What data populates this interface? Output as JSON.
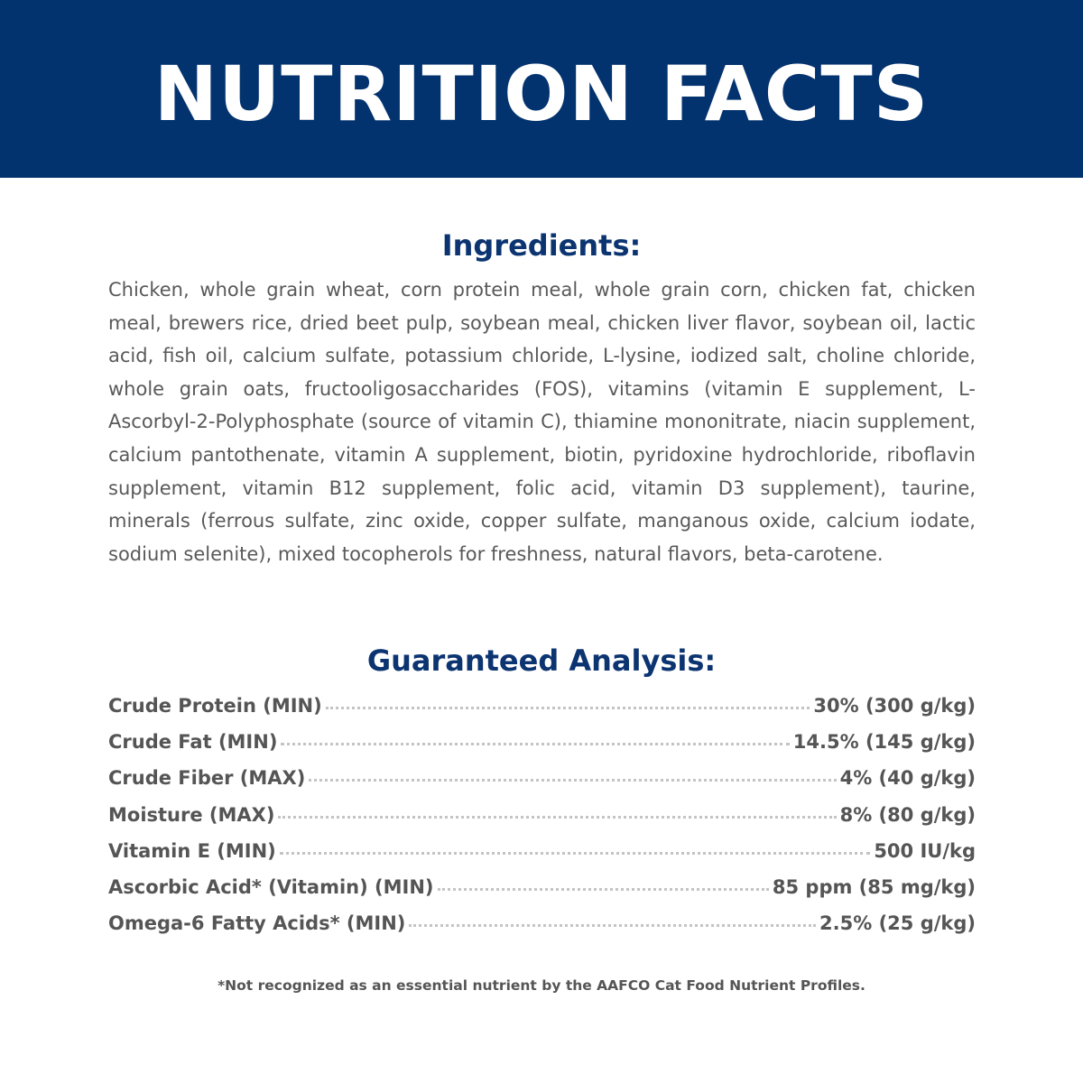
{
  "header": {
    "title": "NUTRITION FACTS",
    "background": "#03336e"
  },
  "ingredients": {
    "heading": "Ingredients:",
    "text": "Chicken, whole grain wheat, corn protein meal, whole grain corn, chicken fat, chicken meal, brewers rice, dried beet pulp, soybean meal, chicken liver flavor, soybean oil, lactic acid, fish oil, calcium sulfate, potassium chloride, L-lysine, iodized salt, choline chloride, whole grain oats, fructooligosaccharides (FOS), vitamins (vitamin E supplement, L-Ascorbyl-2-Polyphosphate (source of vitamin C), thiamine mononitrate, niacin supplement, calcium pantothenate, vitamin A supplement, biotin, pyridoxine hydrochloride, riboflavin supplement, vitamin B12 supplement, folic acid, vitamin D3 supplement), taurine, minerals (ferrous sulfate, zinc oxide, copper sulfate, manganous oxide, calcium iodate, sodium selenite), mixed tocopherols for freshness, natural flavors, beta-carotene."
  },
  "analysis": {
    "heading": "Guaranteed Analysis:",
    "rows": [
      {
        "label": "Crude Protein (MIN)",
        "value": "30% (300 g/kg)"
      },
      {
        "label": "Crude Fat (MIN)",
        "value": "14.5% (145 g/kg)"
      },
      {
        "label": "Crude Fiber (MAX)",
        "value": "4% (40 g/kg)"
      },
      {
        "label": "Moisture (MAX)",
        "value": "8% (80 g/kg)"
      },
      {
        "label": "Vitamin E (MIN)",
        "value": "500 IU/kg"
      },
      {
        "label": "Ascorbic Acid* (Vitamin) (MIN)",
        "value": "85 ppm (85 mg/kg)"
      },
      {
        "label": "Omega-6 Fatty Acids* (MIN)",
        "value": "2.5% (25 g/kg)"
      }
    ]
  },
  "footnote": "*Not recognized as an essential nutrient by the AAFCO Cat Food Nutrient Profiles."
}
